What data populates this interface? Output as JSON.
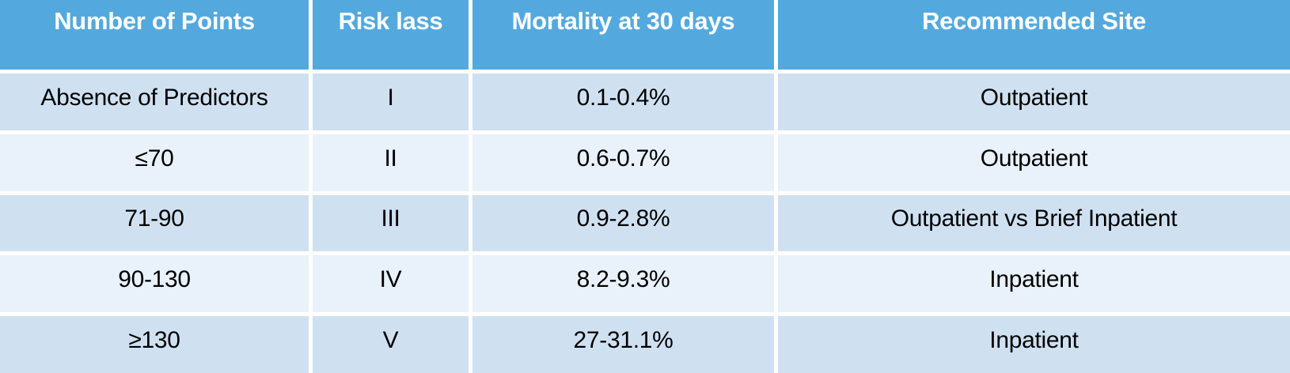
{
  "colors": {
    "header_bg": "#53a9de",
    "header_text": "#ffffff",
    "row_odd_bg": "#cfe1f1",
    "row_even_bg": "#e9f1fa",
    "body_text": "#000000",
    "grid_gap": "#ffffff"
  },
  "table": {
    "headers": {
      "points": "Number of Points",
      "risk_class": "Risk lass",
      "mortality": "Mortality at 30 days",
      "site": "Recommended Site"
    },
    "rows": [
      {
        "points": "Absence of Predictors",
        "risk_class": "I",
        "mortality": "0.1-0.4%",
        "site": "Outpatient"
      },
      {
        "points": "≤70",
        "risk_class": "II",
        "mortality": "0.6-0.7%",
        "site": "Outpatient"
      },
      {
        "points": "71-90",
        "risk_class": "III",
        "mortality": "0.9-2.8%",
        "site": "Outpatient vs Brief Inpatient"
      },
      {
        "points": "90-130",
        "risk_class": "IV",
        "mortality": "8.2-9.3%",
        "site": "Inpatient"
      },
      {
        "points": "≥130",
        "risk_class": "V",
        "mortality": "27-31.1%",
        "site": "Inpatient"
      }
    ]
  },
  "chart_data": {
    "type": "table",
    "columns": [
      "Number of Points",
      "Risk lass",
      "Mortality at 30 days",
      "Recommended Site"
    ],
    "rows": [
      [
        "Absence of Predictors",
        "I",
        "0.1-0.4%",
        "Outpatient"
      ],
      [
        "≤70",
        "II",
        "0.6-0.7%",
        "Outpatient"
      ],
      [
        "71-90",
        "III",
        "0.9-2.8%",
        "Outpatient vs Brief Inpatient"
      ],
      [
        "90-130",
        "IV",
        "8.2-9.3%",
        "Inpatient"
      ],
      [
        "≥130",
        "V",
        "27-31.1%",
        "Inpatient"
      ]
    ],
    "layout": {
      "header_row": true,
      "row_striping": "alternating",
      "cell_alignment": "center"
    }
  }
}
